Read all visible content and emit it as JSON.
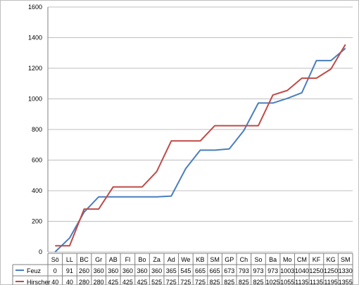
{
  "chart_data": {
    "type": "line",
    "title": "",
    "xlabel": "",
    "ylabel": "",
    "ylim": [
      0,
      1600
    ],
    "yticks": [
      0,
      200,
      400,
      600,
      800,
      1000,
      1200,
      1400,
      1600
    ],
    "grid": true,
    "legend": "bottom-left data table",
    "categories": [
      "Sö",
      "LL",
      "BC",
      "Gr",
      "AB",
      "Fl",
      "Bo",
      "Za",
      "Ad",
      "We",
      "KB",
      "SM",
      "GP",
      "Ch",
      "So",
      "Ba",
      "Mo",
      "CM",
      "KF",
      "KG",
      "SM"
    ],
    "series": [
      {
        "name": "Feuz",
        "color": "#4a7ebb",
        "values": [
          0,
          91,
          260,
          360,
          360,
          360,
          360,
          360,
          365,
          545,
          665,
          665,
          673,
          793,
          973,
          973,
          1003,
          1040,
          1250,
          1250,
          1330
        ]
      },
      {
        "name": "Hirscher",
        "color": "#be4b48",
        "values": [
          40,
          40,
          280,
          280,
          425,
          425,
          425,
          525,
          725,
          725,
          725,
          825,
          825,
          825,
          825,
          1025,
          1055,
          1135,
          1135,
          1195,
          1355
        ]
      }
    ]
  }
}
